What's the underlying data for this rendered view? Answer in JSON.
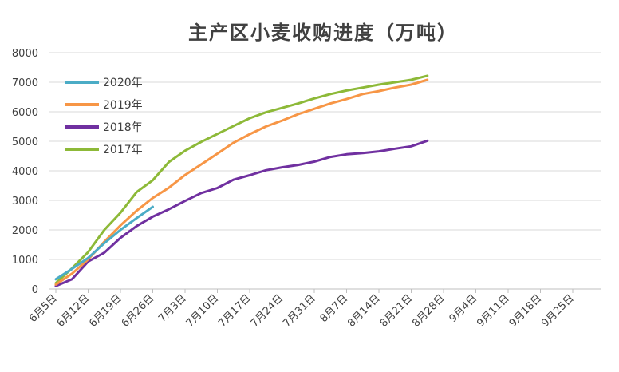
{
  "chart_data": {
    "type": "line",
    "title": "主产区小麦收购进度（万吨）",
    "xlabel": "",
    "ylabel": "",
    "ylim": [
      0,
      8000
    ],
    "yticks": [
      0,
      1000,
      2000,
      3000,
      4000,
      5000,
      6000,
      7000,
      8000
    ],
    "x_ticks": [
      "6月5日",
      "6月12日",
      "6月19日",
      "6月26日",
      "7月3日",
      "7月10日",
      "7月17日",
      "7月24日",
      "7月31日",
      "8月7日",
      "8月14日",
      "8月21日",
      "8月28日",
      "9月4日",
      "9月11日",
      "9月18日",
      "9月25日"
    ],
    "grid": true,
    "legend": "top-left",
    "series": [
      {
        "name": "2020年",
        "color": "#4bacc6",
        "points": [
          [
            0,
            330
          ],
          [
            1,
            680
          ],
          [
            2,
            1050
          ],
          [
            3,
            1550
          ],
          [
            4,
            2000
          ],
          [
            5,
            2400
          ],
          [
            6,
            2780
          ]
        ]
      },
      {
        "name": "2019年",
        "color": "#f79646",
        "points": [
          [
            0,
            150
          ],
          [
            1,
            520
          ],
          [
            2,
            1000
          ],
          [
            3,
            1600
          ],
          [
            4,
            2150
          ],
          [
            5,
            2650
          ],
          [
            6,
            3080
          ],
          [
            7,
            3430
          ],
          [
            8,
            3860
          ],
          [
            9,
            4220
          ],
          [
            10,
            4580
          ],
          [
            11,
            4950
          ],
          [
            12,
            5240
          ],
          [
            13,
            5500
          ],
          [
            14,
            5700
          ],
          [
            15,
            5920
          ],
          [
            16,
            6100
          ],
          [
            17,
            6280
          ],
          [
            18,
            6430
          ],
          [
            19,
            6600
          ],
          [
            20,
            6700
          ],
          [
            21,
            6820
          ],
          [
            22,
            6920
          ],
          [
            23,
            7080
          ]
        ]
      },
      {
        "name": "2018年",
        "color": "#7030a0",
        "points": [
          [
            0,
            100
          ],
          [
            1,
            330
          ],
          [
            2,
            930
          ],
          [
            3,
            1230
          ],
          [
            4,
            1730
          ],
          [
            5,
            2130
          ],
          [
            6,
            2450
          ],
          [
            7,
            2700
          ],
          [
            8,
            2980
          ],
          [
            9,
            3250
          ],
          [
            10,
            3420
          ],
          [
            11,
            3700
          ],
          [
            12,
            3850
          ],
          [
            13,
            4020
          ],
          [
            14,
            4120
          ],
          [
            15,
            4200
          ],
          [
            16,
            4310
          ],
          [
            17,
            4470
          ],
          [
            18,
            4560
          ],
          [
            19,
            4600
          ],
          [
            20,
            4660
          ],
          [
            21,
            4750
          ],
          [
            22,
            4830
          ],
          [
            23,
            5020
          ]
        ]
      },
      {
        "name": "2017年",
        "color": "#8db938",
        "points": [
          [
            0,
            200
          ],
          [
            1,
            700
          ],
          [
            2,
            1250
          ],
          [
            3,
            2000
          ],
          [
            4,
            2580
          ],
          [
            5,
            3280
          ],
          [
            6,
            3680
          ],
          [
            7,
            4300
          ],
          [
            8,
            4680
          ],
          [
            9,
            4980
          ],
          [
            10,
            5250
          ],
          [
            11,
            5520
          ],
          [
            12,
            5780
          ],
          [
            13,
            5980
          ],
          [
            14,
            6130
          ],
          [
            15,
            6280
          ],
          [
            16,
            6450
          ],
          [
            17,
            6600
          ],
          [
            18,
            6720
          ],
          [
            19,
            6820
          ],
          [
            20,
            6920
          ],
          [
            21,
            7000
          ],
          [
            22,
            7080
          ],
          [
            23,
            7220
          ]
        ]
      }
    ]
  }
}
